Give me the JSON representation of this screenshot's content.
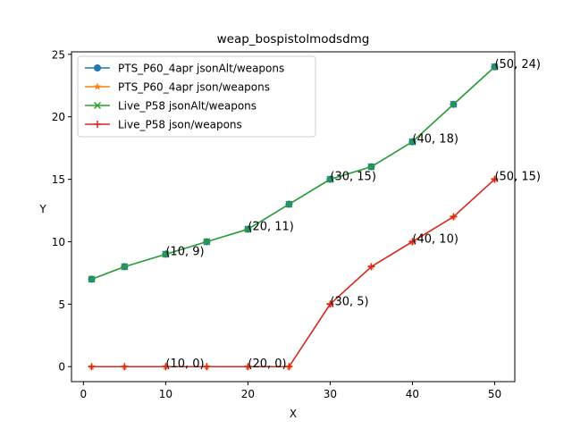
{
  "chart_data": {
    "type": "line",
    "title": "weap_bospistolmodsdmg",
    "xlabel": "X",
    "ylabel": "Y",
    "xlim": [
      -1.45,
      52.45
    ],
    "ylim": [
      -1.2,
      25.2
    ],
    "xticks": [
      0,
      10,
      20,
      30,
      40,
      50
    ],
    "yticks": [
      0,
      5,
      10,
      15,
      20,
      25
    ],
    "grid": false,
    "legend_position": "upper-left",
    "series": [
      {
        "name": "PTS_P60_4apr jsonAlt/weapons",
        "color": "#1f77b4",
        "marker": "circle",
        "x": [
          1,
          5,
          10,
          15,
          20,
          25,
          30,
          35,
          40,
          45,
          50
        ],
        "y": [
          7,
          8,
          9,
          10,
          11,
          13,
          15,
          16,
          18,
          21,
          24
        ]
      },
      {
        "name": "PTS_P60_4apr json/weapons",
        "color": "#ff7f0e",
        "marker": "star",
        "x": [
          1,
          5,
          10,
          15,
          20,
          25,
          30,
          35,
          40,
          45,
          50
        ],
        "y": [
          0,
          0,
          0,
          0,
          0,
          0,
          5,
          8,
          10,
          12,
          15
        ]
      },
      {
        "name": "Live_P58 jsonAlt/weapons",
        "color": "#2ca02c",
        "marker": "x",
        "x": [
          1,
          5,
          10,
          15,
          20,
          25,
          30,
          35,
          40,
          45,
          50
        ],
        "y": [
          7,
          8,
          9,
          10,
          11,
          13,
          15,
          16,
          18,
          21,
          24
        ]
      },
      {
        "name": "Live_P58 json/weapons",
        "color": "#d62728",
        "marker": "plus",
        "x": [
          1,
          5,
          10,
          15,
          20,
          25,
          30,
          35,
          40,
          45,
          50
        ],
        "y": [
          0,
          0,
          0,
          0,
          0,
          0,
          5,
          8,
          10,
          12,
          15
        ]
      }
    ],
    "annotations": [
      {
        "text": "(10, 9)",
        "x": 10,
        "y": 9
      },
      {
        "text": "(20, 11)",
        "x": 20,
        "y": 11
      },
      {
        "text": "(30, 15)",
        "x": 30,
        "y": 15
      },
      {
        "text": "(40, 18)",
        "x": 40,
        "y": 18
      },
      {
        "text": "(50, 24)",
        "x": 50,
        "y": 24
      },
      {
        "text": "(10, 0)",
        "x": 10,
        "y": 0
      },
      {
        "text": "(20, 0)",
        "x": 20,
        "y": 0
      },
      {
        "text": "(30, 5)",
        "x": 30,
        "y": 5
      },
      {
        "text": "(40, 10)",
        "x": 40,
        "y": 10
      },
      {
        "text": "(50, 15)",
        "x": 50,
        "y": 15
      }
    ]
  }
}
